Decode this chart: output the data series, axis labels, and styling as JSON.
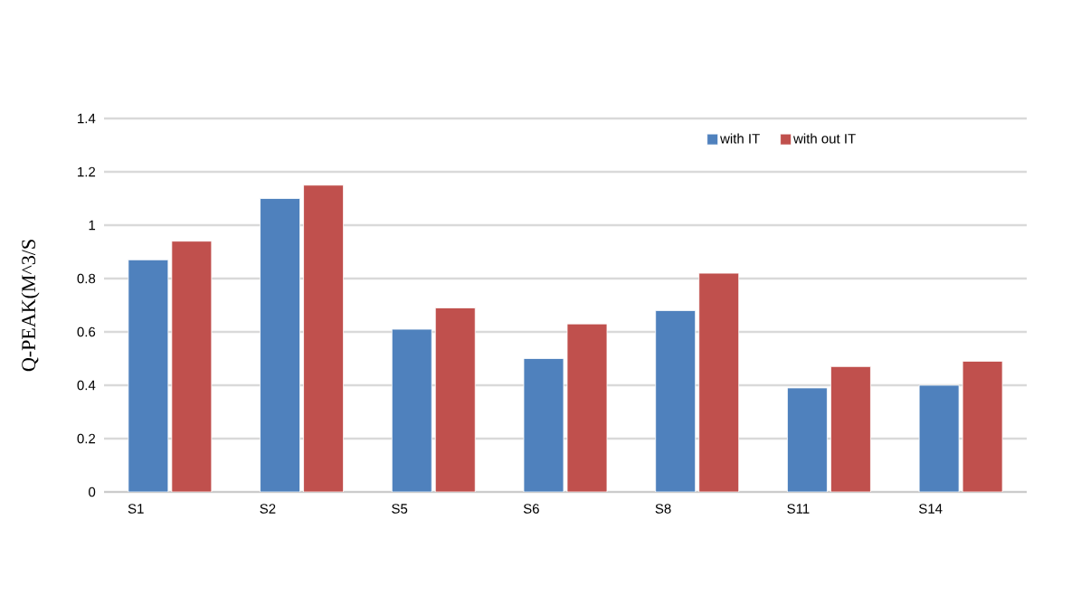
{
  "chart_data": {
    "type": "bar",
    "ylabel": "Q-PEAK(M^3/S",
    "categories": [
      "S1",
      "S2",
      "S5",
      "S6",
      "S8",
      "S11",
      "S14"
    ],
    "series": [
      {
        "name": "with IT",
        "color": "#4f81bd",
        "values": [
          0.87,
          1.1,
          0.61,
          0.5,
          0.68,
          0.39,
          0.4
        ]
      },
      {
        "name": "with out IT",
        "color": "#c0504d",
        "values": [
          0.94,
          1.15,
          0.69,
          0.63,
          0.82,
          0.47,
          0.49
        ]
      }
    ],
    "ylim": [
      0,
      1.4
    ],
    "yticks": [
      0,
      0.2,
      0.4,
      0.6,
      0.8,
      1,
      1.2,
      1.4
    ],
    "grid": "y",
    "legend": "top right"
  }
}
